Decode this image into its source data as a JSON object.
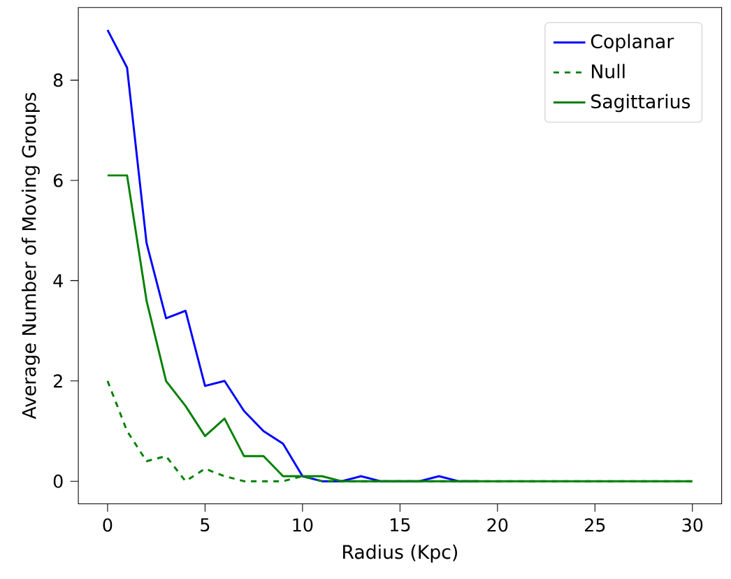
{
  "chart_data": {
    "type": "line",
    "xlabel": "Radius (Kpc)",
    "ylabel": "Average Number of Moving Groups",
    "x": [
      0,
      1,
      2,
      3,
      4,
      5,
      6,
      7,
      8,
      9,
      10,
      11,
      12,
      13,
      14,
      15,
      16,
      17,
      18,
      19,
      20,
      21,
      22,
      23,
      24,
      25,
      26,
      27,
      28,
      29,
      30
    ],
    "series": [
      {
        "name": "Coplanar",
        "color": "#0000ff",
        "line_style": "solid",
        "values": [
          9.0,
          8.25,
          4.75,
          3.25,
          3.4,
          1.9,
          2.0,
          1.4,
          1.0,
          0.75,
          0.1,
          0,
          0,
          0.1,
          0,
          0,
          0,
          0.1,
          0,
          0,
          null,
          null,
          null,
          null,
          null,
          null,
          null,
          null,
          null,
          null,
          null
        ]
      },
      {
        "name": "Null",
        "color": "#008000",
        "line_style": "dashed",
        "values": [
          2.0,
          1.0,
          0.4,
          0.5,
          0,
          0.25,
          0.1,
          0,
          0,
          0,
          0.1,
          0,
          0,
          0,
          0,
          0,
          0,
          0,
          0,
          0,
          0,
          0,
          0,
          0,
          0,
          0,
          0,
          0,
          0,
          0,
          0
        ]
      },
      {
        "name": "Sagittarius",
        "color": "#008000",
        "line_style": "solid",
        "values": [
          6.1,
          6.1,
          3.6,
          2.0,
          1.5,
          0.9,
          1.25,
          0.5,
          0.5,
          0.1,
          0.1,
          0.1,
          0,
          0,
          0,
          0,
          0,
          0,
          0,
          0,
          0,
          0,
          0,
          0,
          0,
          0,
          0,
          0,
          0,
          0,
          0
        ]
      }
    ],
    "xlim": [
      -1.5,
      31.5
    ],
    "ylim": [
      -0.45,
      9.45
    ],
    "xticks": [
      0,
      5,
      10,
      15,
      20,
      25,
      30
    ],
    "yticks": [
      0,
      2,
      4,
      6,
      8
    ],
    "legend": "top right",
    "grid": false,
    "marker": "none"
  }
}
